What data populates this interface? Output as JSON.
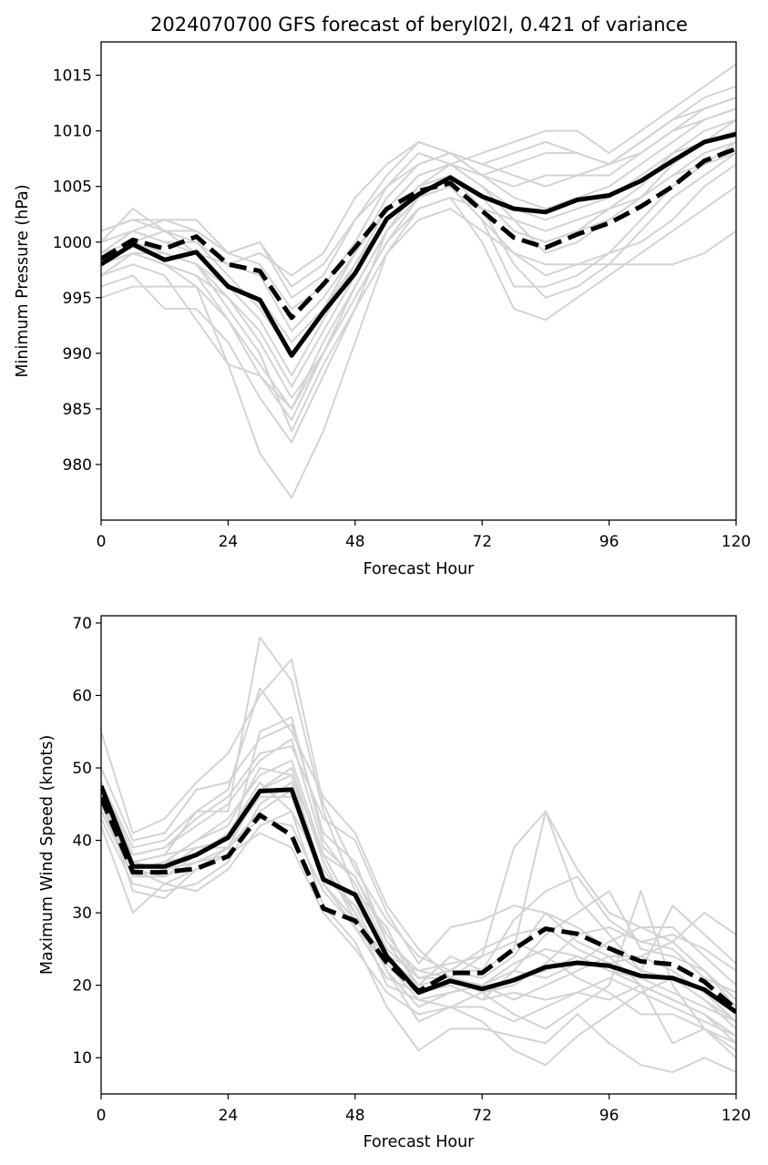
{
  "chart_data": [
    {
      "type": "line",
      "title": "2024070700 GFS forecast of beryl02l, 0.421 of variance",
      "xlabel": "Forecast Hour",
      "ylabel": "Minimum Pressure (hPa)",
      "xlim": [
        0,
        120
      ],
      "ylim": [
        975,
        1018
      ],
      "xticks": [
        0,
        24,
        48,
        72,
        96,
        120
      ],
      "yticks": [
        980,
        985,
        990,
        995,
        1000,
        1005,
        1010,
        1015
      ],
      "x": [
        0,
        6,
        12,
        18,
        24,
        30,
        36,
        42,
        48,
        54,
        60,
        66,
        72,
        78,
        84,
        90,
        96,
        102,
        108,
        114,
        120
      ],
      "colors": {
        "ensemble": "#d3d3d3",
        "main": "#000000"
      },
      "series": [
        {
          "style": "solid-black-thick",
          "values": [
            998.0,
            999.8,
            998.4,
            999.1,
            996.0,
            994.8,
            989.8,
            993.7,
            997.2,
            1002.1,
            1004.3,
            1005.8,
            1004.1,
            1003.0,
            1002.7,
            1003.8,
            1004.2,
            1005.5,
            1007.3,
            1009.0,
            1009.7
          ]
        },
        {
          "style": "dashed-black-thick",
          "values": [
            998.5,
            1000.2,
            999.4,
            1000.5,
            998.0,
            997.4,
            993.2,
            996.2,
            999.5,
            1003.0,
            1004.6,
            1005.3,
            1002.8,
            1000.4,
            999.5,
            1000.7,
            1001.7,
            1003.2,
            1005.0,
            1007.3,
            1008.4
          ]
        },
        {
          "style": "gray",
          "values": [
            995,
            996,
            996,
            996,
            989,
            981,
            977,
            983,
            991,
            999,
            1003,
            1004,
            1003,
            1002,
            1001,
            1002,
            1003,
            1004,
            1006,
            1007,
            1008
          ]
        },
        {
          "style": "gray",
          "values": [
            996,
            997,
            994,
            994,
            991,
            986,
            982,
            988,
            994,
            1001,
            1004,
            1005,
            1002,
            999,
            997,
            998,
            999,
            1000,
            1002,
            1005,
            1007
          ]
        },
        {
          "style": "gray",
          "values": [
            997,
            998,
            997,
            993,
            989,
            988,
            984,
            990,
            995,
            1000,
            1004,
            1006,
            1003,
            998,
            995,
            996,
            998,
            1001,
            1004,
            1006,
            1008
          ]
        },
        {
          "style": "gray",
          "values": [
            998,
            999,
            998,
            996,
            993,
            989,
            985,
            991,
            996,
            1001,
            1005,
            1007,
            1005,
            1002,
            999,
            1000,
            1002,
            1004,
            1007,
            1009,
            1010
          ]
        },
        {
          "style": "gray",
          "values": [
            999,
            1000,
            999,
            998,
            995,
            992,
            987,
            992,
            997,
            1002,
            1005,
            1006,
            1004,
            1001,
            1000,
            1001,
            1003,
            1005,
            1008,
            1010,
            1011
          ]
        },
        {
          "style": "gray",
          "values": [
            1000,
            1001,
            1000,
            999,
            996,
            993,
            988,
            993,
            998,
            1003,
            1006,
            1007,
            1006,
            1004,
            1003,
            1004,
            1005,
            1007,
            1009,
            1011,
            1012
          ]
        },
        {
          "style": "gray",
          "values": [
            1001,
            1002,
            1001,
            1000,
            997,
            994,
            990,
            994,
            999,
            1004,
            1007,
            1008,
            1007,
            1006,
            1005,
            1006,
            1007,
            1009,
            1011,
            1012,
            1013
          ]
        },
        {
          "style": "gray",
          "values": [
            999,
            1001,
            1002,
            1002,
            999,
            998,
            994,
            996,
            1000,
            1005,
            1008,
            1007,
            1008,
            1009,
            1010,
            1010,
            1008,
            1010,
            1012,
            1014,
            1016
          ]
        },
        {
          "style": "gray",
          "values": [
            998,
            1000,
            1001,
            1001,
            999,
            1000,
            996,
            998,
            1002,
            1006,
            1009,
            1008,
            1007,
            1008,
            1009,
            1008,
            1007,
            1008,
            1010,
            1011,
            1012
          ]
        },
        {
          "style": "gray",
          "values": [
            997,
            999,
            998,
            997,
            995,
            991,
            986,
            990,
            995,
            1000,
            1003,
            1004,
            1000,
            994,
            993,
            995,
            997,
            999,
            1001,
            1003,
            1005
          ]
        },
        {
          "style": "gray",
          "values": [
            998,
            1000,
            999,
            998,
            994,
            990,
            983,
            989,
            994,
            999,
            1002,
            1003,
            1001,
            999,
            998,
            998,
            998,
            998,
            998,
            999,
            1001
          ]
        },
        {
          "style": "gray",
          "values": [
            1000,
            1003,
            1001,
            999,
            998,
            999,
            997,
            999,
            1004,
            1007,
            1009,
            1008,
            1006,
            1007,
            1008,
            1008,
            1007,
            1009,
            1011,
            1013,
            1014
          ]
        },
        {
          "style": "gray",
          "values": [
            999,
            1001,
            1000,
            1000,
            998,
            997,
            992,
            995,
            999,
            1003,
            1006,
            1007,
            1005,
            1003,
            1002,
            1003,
            1004,
            1006,
            1008,
            1009,
            1011
          ]
        },
        {
          "style": "gray",
          "values": [
            998,
            999,
            999,
            998,
            996,
            995,
            991,
            994,
            998,
            1002,
            1005,
            1006,
            1004,
            1001,
            1000,
            1001,
            1002,
            1004,
            1006,
            1008,
            1009
          ]
        },
        {
          "style": "gray",
          "values": [
            997,
            999,
            998,
            997,
            993,
            988,
            985,
            990,
            996,
            1001,
            1004,
            1005,
            1002,
            996,
            996,
            997,
            999,
            1002,
            1005,
            1007,
            1009
          ]
        },
        {
          "style": "gray",
          "values": [
            1001,
            1002,
            1002,
            1001,
            999,
            1000,
            995,
            997,
            1002,
            1005,
            1007,
            1008,
            1006,
            1005,
            1006,
            1006,
            1006,
            1008,
            1010,
            1012,
            1013
          ]
        }
      ]
    },
    {
      "type": "line",
      "title": "",
      "xlabel": "Forecast Hour",
      "ylabel": "Maximum Wind Speed (knots)",
      "xlim": [
        0,
        120
      ],
      "ylim": [
        5,
        71
      ],
      "xticks": [
        0,
        24,
        48,
        72,
        96,
        120
      ],
      "yticks": [
        10,
        20,
        30,
        40,
        50,
        60,
        70
      ],
      "x": [
        0,
        6,
        12,
        18,
        24,
        30,
        36,
        42,
        48,
        54,
        60,
        66,
        72,
        78,
        84,
        90,
        96,
        102,
        108,
        114,
        120
      ],
      "colors": {
        "ensemble": "#d3d3d3",
        "main": "#000000"
      },
      "series": [
        {
          "style": "solid-black-thick",
          "values": [
            47.5,
            36.4,
            36.4,
            38.0,
            40.4,
            46.8,
            47.0,
            34.6,
            32.5,
            24.0,
            19.0,
            20.6,
            19.5,
            20.7,
            22.5,
            23.1,
            22.7,
            21.3,
            21.0,
            19.4,
            16.3
          ]
        },
        {
          "style": "dashed-black-thick",
          "values": [
            45.9,
            35.6,
            35.6,
            36.1,
            37.8,
            43.5,
            40.7,
            30.6,
            28.9,
            23.1,
            19.2,
            21.7,
            21.7,
            25.0,
            27.8,
            27.1,
            25.1,
            23.3,
            22.9,
            20.5,
            16.7
          ]
        },
        {
          "style": "gray",
          "values": [
            55,
            41,
            43,
            48,
            52,
            60,
            65,
            45,
            36,
            29,
            24,
            22,
            22,
            25,
            44,
            36,
            30,
            28,
            28,
            24,
            20
          ]
        },
        {
          "style": "gray",
          "values": [
            50,
            40,
            41,
            47,
            48,
            54,
            56,
            41,
            37,
            26,
            22,
            21,
            24,
            39,
            44,
            32,
            27,
            22,
            31,
            27,
            23
          ]
        },
        {
          "style": "gray",
          "values": [
            46,
            37,
            38,
            44,
            44,
            68,
            62,
            44,
            33,
            28,
            19,
            20,
            18,
            22,
            27,
            30,
            33,
            25,
            24,
            22,
            17
          ]
        },
        {
          "style": "gray",
          "values": [
            45,
            36,
            37,
            40,
            42,
            50,
            49,
            38,
            30,
            22,
            17,
            19,
            20,
            18,
            20,
            22,
            24,
            24,
            26,
            30,
            27
          ]
        },
        {
          "style": "gray",
          "values": [
            44,
            35,
            35,
            37,
            39,
            47,
            50,
            37,
            29,
            24,
            20,
            21,
            19,
            21,
            22,
            24,
            22,
            21,
            19,
            17,
            15
          ]
        },
        {
          "style": "gray",
          "values": [
            43,
            34,
            33,
            34,
            37,
            45,
            48,
            35,
            31,
            22,
            15,
            17,
            15,
            11,
            9,
            13,
            16,
            19,
            21,
            18,
            14
          ]
        },
        {
          "style": "gray",
          "values": [
            42,
            30,
            34,
            33,
            36,
            42,
            44,
            31,
            26,
            17,
            11,
            14,
            14,
            13,
            12,
            16,
            12,
            9,
            8,
            10,
            8
          ]
        },
        {
          "style": "gray",
          "values": [
            47,
            33,
            32,
            36,
            38,
            55,
            57,
            40,
            34,
            25,
            21,
            22,
            21,
            24,
            30,
            26,
            24,
            20,
            18,
            16,
            12
          ]
        },
        {
          "style": "gray",
          "values": [
            45,
            38,
            39,
            43,
            46,
            52,
            53,
            43,
            40,
            30,
            23,
            28,
            29,
            31,
            30,
            28,
            25,
            22,
            21,
            18,
            15
          ]
        },
        {
          "style": "gray",
          "values": [
            48,
            39,
            40,
            44,
            47,
            61,
            55,
            46,
            41,
            31,
            25,
            21,
            20,
            22,
            21,
            23,
            26,
            28,
            26,
            22,
            18
          ]
        },
        {
          "style": "gray",
          "values": [
            44,
            36,
            35,
            38,
            41,
            48,
            44,
            36,
            30,
            20,
            18,
            17,
            19,
            16,
            14,
            17,
            20,
            33,
            20,
            14,
            11
          ]
        },
        {
          "style": "gray",
          "values": [
            46,
            37,
            36,
            39,
            40,
            46,
            46,
            34,
            29,
            24,
            22,
            23,
            24,
            26,
            24,
            21,
            19,
            16,
            16,
            14,
            12
          ]
        },
        {
          "style": "gray",
          "values": [
            45,
            35,
            36,
            37,
            38,
            41,
            39,
            30,
            25,
            19,
            16,
            17,
            17,
            15,
            17,
            19,
            18,
            20,
            18,
            16,
            13
          ]
        },
        {
          "style": "gray",
          "values": [
            47,
            36,
            37,
            40,
            43,
            49,
            51,
            38,
            35,
            27,
            21,
            22,
            25,
            27,
            28,
            25,
            23,
            24,
            22,
            19,
            15
          ]
        },
        {
          "style": "gray",
          "values": [
            46,
            37,
            38,
            39,
            39,
            43,
            42,
            33,
            28,
            21,
            19,
            20,
            18,
            19,
            18,
            19,
            21,
            19,
            17,
            15,
            13
          ]
        },
        {
          "style": "gray",
          "values": [
            48,
            38,
            39,
            42,
            45,
            51,
            54,
            39,
            35,
            26,
            20,
            24,
            22,
            29,
            33,
            35,
            29,
            26,
            27,
            25,
            22
          ]
        },
        {
          "style": "gray",
          "values": [
            45,
            36,
            34,
            36,
            39,
            44,
            47,
            34,
            28,
            23,
            18,
            19,
            20,
            23,
            25,
            24,
            22,
            20,
            12,
            14,
            10
          ]
        },
        {
          "style": "gray",
          "values": [
            46,
            36,
            37,
            38,
            41,
            47,
            49,
            35,
            31,
            25,
            21,
            21,
            19,
            20,
            23,
            27,
            28,
            26,
            25,
            21,
            19
          ]
        }
      ]
    }
  ]
}
